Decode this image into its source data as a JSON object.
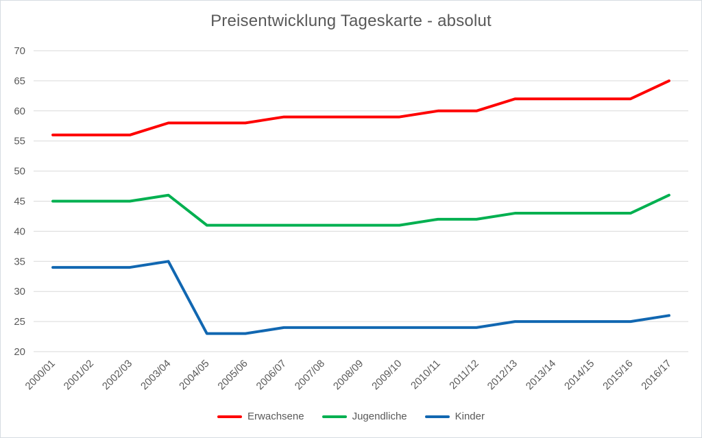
{
  "chart_data": {
    "type": "line",
    "title": "Preisentwicklung Tageskarte - absolut",
    "categories": [
      "2000/01",
      "2001/02",
      "2002/03",
      "2003/04",
      "2004/05",
      "2005/06",
      "2006/07",
      "2007/08",
      "2008/09",
      "2009/10",
      "2010/11",
      "2011/12",
      "2012/13",
      "2013/14",
      "2014/15",
      "2015/16",
      "2016/17"
    ],
    "series": [
      {
        "name": "Erwachsene",
        "color": "#fe0000",
        "values": [
          56,
          56,
          56,
          58,
          58,
          58,
          59,
          59,
          59,
          59,
          60,
          60,
          62,
          62,
          62,
          62,
          65
        ]
      },
      {
        "name": "Jugendliche",
        "color": "#00b050",
        "values": [
          45,
          45,
          45,
          46,
          41,
          41,
          41,
          41,
          41,
          41,
          42,
          42,
          43,
          43,
          43,
          43,
          46
        ]
      },
      {
        "name": "Kinder",
        "color": "#1167b1",
        "values": [
          34,
          34,
          34,
          35,
          23,
          23,
          24,
          24,
          24,
          24,
          24,
          24,
          25,
          25,
          25,
          25,
          26
        ]
      }
    ],
    "xlabel": "",
    "ylabel": "",
    "ylim": [
      20,
      70
    ],
    "yticks": [
      70,
      65,
      60,
      55,
      50,
      45,
      40,
      35,
      30,
      25,
      20
    ],
    "grid": "horizontal-only",
    "gridline_color": "#d9d9d9",
    "axis_label_color": "#595959",
    "legend_position": "bottom"
  }
}
